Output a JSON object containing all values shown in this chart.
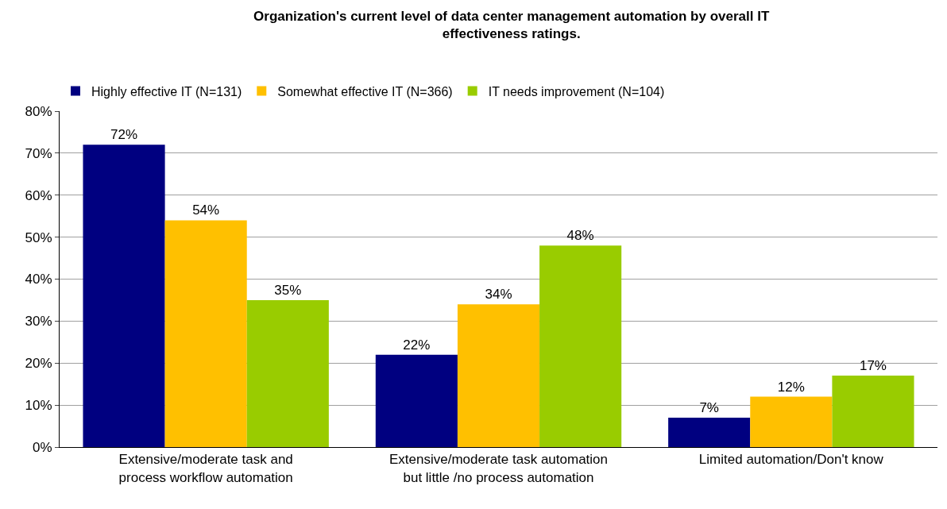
{
  "chart_data": {
    "type": "bar",
    "title": "Organization's current level of data center management automation by overall IT effectiveness ratings.",
    "categories": [
      "Extensive/moderate task and process workflow automation",
      "Extensive/moderate task automation but little /no process automation",
      "Limited automation/Don't know"
    ],
    "series": [
      {
        "name": "Highly effective IT (N=131)",
        "color": "#000080",
        "values": [
          72,
          22,
          7
        ],
        "value_labels": [
          "72%",
          "22%",
          "7%"
        ]
      },
      {
        "name": "Somewhat effective IT (N=366)",
        "color": "#ffc000",
        "values": [
          54,
          34,
          12
        ],
        "value_labels": [
          "54%",
          "34%",
          "12%"
        ]
      },
      {
        "name": "IT needs improvement (N=104)",
        "color": "#99cc00",
        "values": [
          35,
          48,
          17
        ],
        "value_labels": [
          "35%",
          "48%",
          "17%"
        ]
      }
    ],
    "ylim": [
      0,
      80
    ],
    "yticks": [
      {
        "value": 0,
        "label": "0%"
      },
      {
        "value": 10,
        "label": "10%"
      },
      {
        "value": 20,
        "label": "20%"
      },
      {
        "value": 30,
        "label": "30%"
      },
      {
        "value": 40,
        "label": "40%"
      },
      {
        "value": 50,
        "label": "50%"
      },
      {
        "value": 60,
        "label": "60%"
      },
      {
        "value": 70,
        "label": "70%"
      },
      {
        "value": 80,
        "label": "80%"
      }
    ],
    "grid": "y",
    "legend": "top left"
  }
}
